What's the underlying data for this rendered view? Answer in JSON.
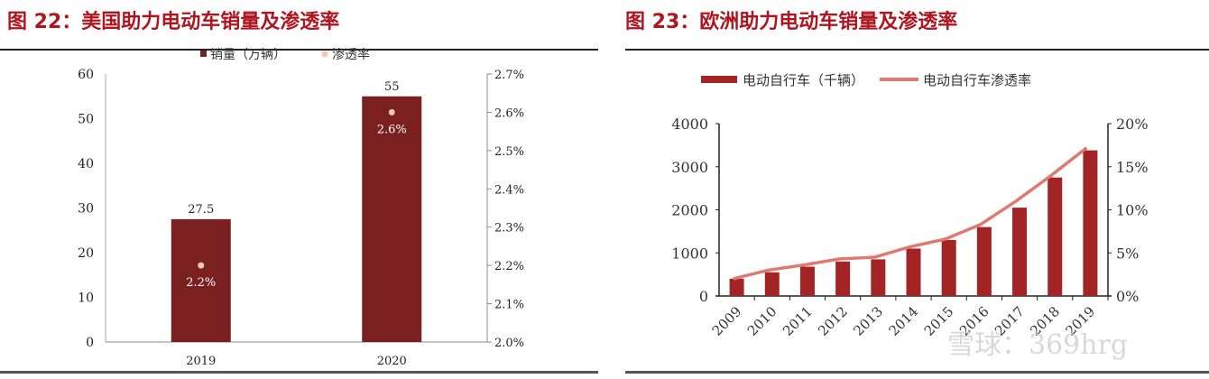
{
  "chart_data": [
    {
      "type": "bar",
      "title": "图 22：美国助力电动车销量及渗透率",
      "categories": [
        "2019",
        "2020"
      ],
      "series": [
        {
          "name": "销量（万辆）",
          "type": "bar",
          "axis": "left",
          "values": [
            27.5,
            55
          ],
          "labels": [
            "27.5",
            "55"
          ]
        },
        {
          "name": "渗透率",
          "type": "scatter",
          "axis": "right",
          "values": [
            2.2,
            2.6
          ],
          "labels": [
            "2.2%",
            "2.6%"
          ]
        }
      ],
      "ylim": [
        0,
        60
      ],
      "yticks": [
        "0",
        "10",
        "20",
        "30",
        "40",
        "50",
        "60"
      ],
      "y2lim": [
        2.0,
        2.7
      ],
      "y2ticks": [
        "2.0%",
        "2.1%",
        "2.2%",
        "2.3%",
        "2.4%",
        "2.5%",
        "2.6%",
        "2.7%"
      ],
      "legend": "top",
      "grid": false,
      "colors": {
        "bar": "#7b2020",
        "dot": "#f2c7b4",
        "label": "#ffffff"
      }
    },
    {
      "type": "bar",
      "title": "图 23：欧洲助力电动车销量及渗透率",
      "categories": [
        "2009",
        "2010",
        "2011",
        "2012",
        "2013",
        "2014",
        "2015",
        "2016",
        "2017",
        "2018",
        "2019"
      ],
      "series": [
        {
          "name": "电动自行车（千辆）",
          "type": "bar",
          "axis": "left",
          "values": [
            400,
            550,
            680,
            800,
            850,
            1100,
            1300,
            1600,
            2050,
            2750,
            3380
          ]
        },
        {
          "name": "电动自行车渗透率",
          "type": "line",
          "axis": "right",
          "values": [
            2.0,
            3.0,
            3.6,
            4.3,
            4.5,
            5.7,
            6.6,
            8.3,
            11.0,
            14.0,
            17.2
          ]
        }
      ],
      "ylim": [
        0,
        4000
      ],
      "yticks": [
        "0",
        "1000",
        "2000",
        "3000",
        "4000"
      ],
      "y2lim": [
        0,
        20
      ],
      "y2ticks": [
        "0%",
        "5%",
        "10%",
        "15%",
        "20%"
      ],
      "legend": "top",
      "grid": false,
      "colors": {
        "bar": "#a32424",
        "line": "#e07a70"
      }
    }
  ],
  "watermark": "雪球：369hrg"
}
